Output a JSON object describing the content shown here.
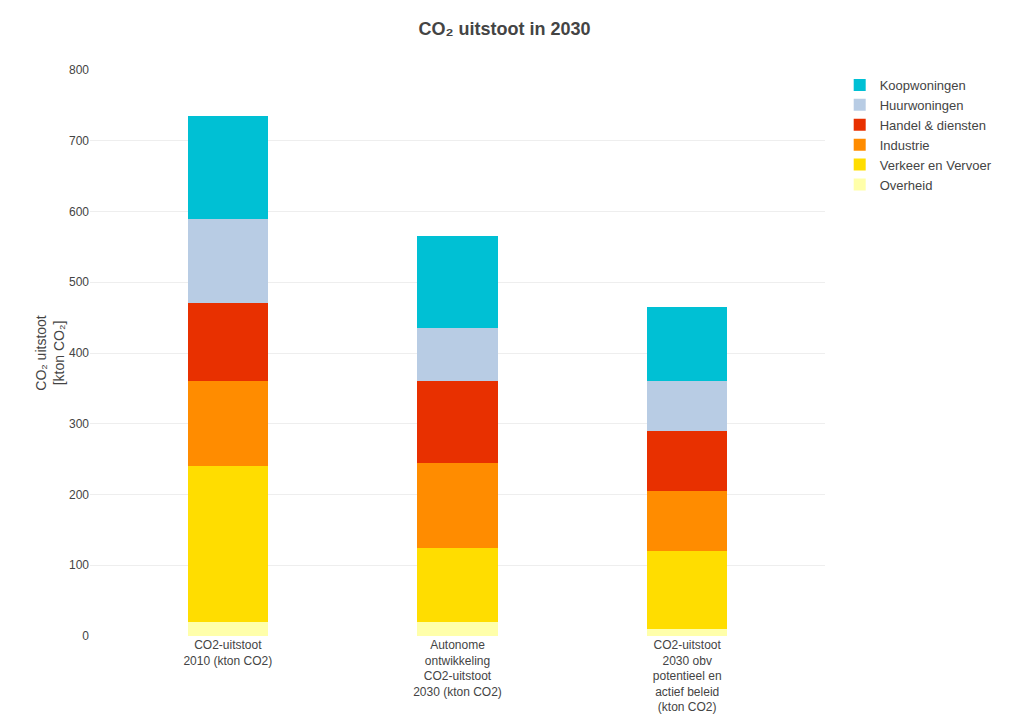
{
  "chart_data": {
    "type": "bar",
    "title": "CO₂ uitstoot in 2030",
    "ylabel": "CO₂ uitstoot\n[kton CO₂]",
    "categories": [
      "CO2-uitstoot\n2010 (kton CO2)",
      "Autonome\nontwikkeling\nCO2-uitstoot\n2030 (kton CO2)",
      "CO2-uitstoot\n2030 obv\npotentieel en\nactief beleid\n(kton CO2)"
    ],
    "series": [
      {
        "name": "Overheid",
        "color": "#ffffaa",
        "values": [
          20,
          20,
          10
        ]
      },
      {
        "name": "Verkeer en Vervoer",
        "color": "#ffdd00",
        "values": [
          220,
          105,
          110
        ]
      },
      {
        "name": "Industrie",
        "color": "#ff8c00",
        "values": [
          120,
          120,
          85
        ]
      },
      {
        "name": "Handel & diensten",
        "color": "#e83000",
        "values": [
          110,
          115,
          85
        ]
      },
      {
        "name": "Huurwoningen",
        "color": "#b8cce4",
        "values": [
          120,
          75,
          70
        ]
      },
      {
        "name": "Koopwoningen",
        "color": "#00c0d4",
        "values": [
          145,
          130,
          105
        ]
      }
    ],
    "ylim": [
      0,
      800
    ],
    "yticks": [
      0,
      100,
      200,
      300,
      400,
      500,
      600,
      700,
      800
    ],
    "stacked": true,
    "grid": true,
    "legend": "right"
  }
}
